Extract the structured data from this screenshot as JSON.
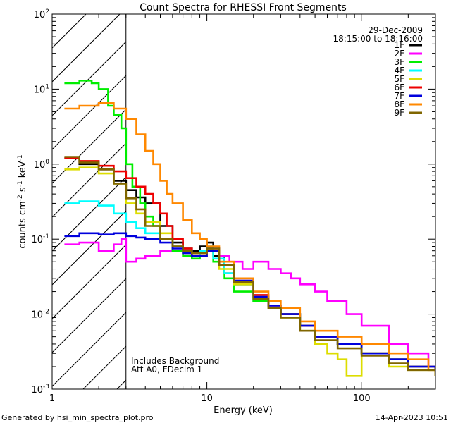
{
  "chart_data": {
    "type": "line",
    "title": "Count Spectra for RHESSI Front Segments",
    "xlabel": "Energy (keV)",
    "ylabel_main": "counts cm",
    "ylabel_sup1": "-2",
    "ylabel_mid1": " s",
    "ylabel_sup2": "-1",
    "ylabel_mid2": " keV",
    "ylabel_sup3": "-1",
    "xscale": "log",
    "yscale": "log",
    "xlim": [
      1,
      300
    ],
    "ylim": [
      0.001,
      100
    ],
    "x_ticks": [
      {
        "value": 1,
        "label": "1"
      },
      {
        "value": 10,
        "label": "10"
      },
      {
        "value": 100,
        "label": "100"
      }
    ],
    "y_ticks": [
      {
        "value": 0.001,
        "base": "10",
        "exp": "-3"
      },
      {
        "value": 0.01,
        "base": "10",
        "exp": "-2"
      },
      {
        "value": 0.1,
        "base": "10",
        "exp": "-1"
      },
      {
        "value": 1,
        "base": "10",
        "exp": "0"
      },
      {
        "value": 10,
        "base": "10",
        "exp": "1"
      },
      {
        "value": 100,
        "base": "10",
        "exp": "2"
      }
    ],
    "hatch_region": [
      1,
      3
    ],
    "date": "29-Dec-2009",
    "time_range": "18:15:00 to 18:16:00",
    "annotations": [
      "Includes Background",
      "Att A0, FDecim 1"
    ],
    "legend_position": "top-right",
    "series": [
      {
        "name": "1F",
        "color": "#000000",
        "points": [
          [
            1.2,
            1.2
          ],
          [
            1.5,
            1.0
          ],
          [
            2.0,
            0.85
          ],
          [
            2.5,
            0.6
          ],
          [
            3.0,
            0.45
          ],
          [
            3.5,
            0.36
          ],
          [
            4.0,
            0.3
          ],
          [
            5.0,
            0.15
          ],
          [
            6.0,
            0.09
          ],
          [
            7.0,
            0.075
          ],
          [
            8.0,
            0.07
          ],
          [
            9.0,
            0.08
          ],
          [
            10.0,
            0.09
          ],
          [
            11.0,
            0.06
          ],
          [
            13.0,
            0.035
          ],
          [
            15.0,
            0.025
          ],
          [
            20.0,
            0.015
          ],
          [
            25.0,
            0.012
          ],
          [
            30.0,
            0.01
          ],
          [
            40.0,
            0.007
          ],
          [
            50.0,
            0.005
          ],
          [
            70.0,
            0.004
          ],
          [
            100.0,
            0.003
          ],
          [
            150.0,
            0.0025
          ],
          [
            200.0,
            0.002
          ],
          [
            270.0,
            0.002
          ],
          [
            300.0,
            0.0018
          ]
        ]
      },
      {
        "name": "2F",
        "color": "#ff00ff",
        "points": [
          [
            1.2,
            0.085
          ],
          [
            1.5,
            0.09
          ],
          [
            2.0,
            0.07
          ],
          [
            2.5,
            0.085
          ],
          [
            2.8,
            0.1
          ],
          [
            3.0,
            0.05
          ],
          [
            3.5,
            0.055
          ],
          [
            4.0,
            0.06
          ],
          [
            5.0,
            0.07
          ],
          [
            6.0,
            0.08
          ],
          [
            7.0,
            0.07
          ],
          [
            8.0,
            0.06
          ],
          [
            10.0,
            0.07
          ],
          [
            12.0,
            0.06
          ],
          [
            14.0,
            0.05
          ],
          [
            17.0,
            0.04
          ],
          [
            20.0,
            0.05
          ],
          [
            25.0,
            0.04
          ],
          [
            30.0,
            0.035
          ],
          [
            35.0,
            0.03
          ],
          [
            40.0,
            0.025
          ],
          [
            50.0,
            0.02
          ],
          [
            60.0,
            0.015
          ],
          [
            80.0,
            0.01
          ],
          [
            100.0,
            0.007
          ],
          [
            150.0,
            0.004
          ],
          [
            200.0,
            0.003
          ],
          [
            270.0,
            0.002
          ],
          [
            300.0,
            0.002
          ]
        ]
      },
      {
        "name": "3F",
        "color": "#00ee00",
        "points": [
          [
            1.2,
            12.0
          ],
          [
            1.5,
            13.0
          ],
          [
            1.8,
            12.0
          ],
          [
            2.0,
            10.0
          ],
          [
            2.3,
            6.0
          ],
          [
            2.5,
            4.5
          ],
          [
            2.8,
            3.0
          ],
          [
            3.0,
            1.0
          ],
          [
            3.3,
            0.5
          ],
          [
            3.7,
            0.3
          ],
          [
            4.0,
            0.2
          ],
          [
            4.5,
            0.15
          ],
          [
            5.0,
            0.1
          ],
          [
            6.0,
            0.07
          ],
          [
            7.0,
            0.06
          ],
          [
            8.0,
            0.055
          ],
          [
            9.0,
            0.06
          ],
          [
            10.0,
            0.075
          ],
          [
            11.0,
            0.05
          ],
          [
            13.0,
            0.03
          ],
          [
            15.0,
            0.02
          ],
          [
            20.0,
            0.015
          ],
          [
            25.0,
            0.012
          ],
          [
            30.0,
            0.01
          ],
          [
            40.0,
            0.007
          ],
          [
            50.0,
            0.005
          ],
          [
            70.0,
            0.004
          ],
          [
            100.0,
            0.003
          ],
          [
            150.0,
            0.0025
          ],
          [
            200.0,
            0.002
          ],
          [
            300.0,
            0.0015
          ]
        ]
      },
      {
        "name": "4F",
        "color": "#00ffff",
        "points": [
          [
            1.2,
            0.3
          ],
          [
            1.5,
            0.32
          ],
          [
            2.0,
            0.28
          ],
          [
            2.5,
            0.22
          ],
          [
            3.0,
            0.17
          ],
          [
            3.5,
            0.14
          ],
          [
            4.0,
            0.12
          ],
          [
            5.0,
            0.1
          ],
          [
            6.0,
            0.08
          ],
          [
            7.0,
            0.07
          ],
          [
            8.0,
            0.06
          ],
          [
            9.0,
            0.07
          ],
          [
            10.0,
            0.08
          ],
          [
            11.0,
            0.055
          ],
          [
            13.0,
            0.035
          ],
          [
            15.0,
            0.025
          ],
          [
            20.0,
            0.016
          ],
          [
            25.0,
            0.012
          ],
          [
            30.0,
            0.01
          ],
          [
            40.0,
            0.007
          ],
          [
            50.0,
            0.005
          ],
          [
            70.0,
            0.004
          ],
          [
            100.0,
            0.003
          ],
          [
            150.0,
            0.0025
          ],
          [
            200.0,
            0.002
          ],
          [
            300.0,
            0.0017
          ]
        ]
      },
      {
        "name": "5F",
        "color": "#dddd00",
        "points": [
          [
            1.2,
            0.85
          ],
          [
            1.5,
            0.9
          ],
          [
            2.0,
            0.75
          ],
          [
            2.5,
            0.55
          ],
          [
            3.0,
            0.3
          ],
          [
            3.5,
            0.22
          ],
          [
            4.0,
            0.17
          ],
          [
            5.0,
            0.12
          ],
          [
            6.0,
            0.08
          ],
          [
            7.0,
            0.065
          ],
          [
            8.0,
            0.06
          ],
          [
            10.0,
            0.07
          ],
          [
            12.0,
            0.04
          ],
          [
            15.0,
            0.025
          ],
          [
            20.0,
            0.016
          ],
          [
            25.0,
            0.012
          ],
          [
            30.0,
            0.009
          ],
          [
            40.0,
            0.006
          ],
          [
            50.0,
            0.004
          ],
          [
            60.0,
            0.003
          ],
          [
            70.0,
            0.0025
          ],
          [
            80.0,
            0.0015
          ],
          [
            100.0,
            0.003
          ],
          [
            150.0,
            0.002
          ],
          [
            200.0,
            0.0018
          ],
          [
            300.0,
            0.0015
          ]
        ]
      },
      {
        "name": "6F",
        "color": "#ee0000",
        "points": [
          [
            1.2,
            1.2
          ],
          [
            1.5,
            1.1
          ],
          [
            2.0,
            0.95
          ],
          [
            2.5,
            0.8
          ],
          [
            3.0,
            0.65
          ],
          [
            3.5,
            0.5
          ],
          [
            4.0,
            0.4
          ],
          [
            4.5,
            0.3
          ],
          [
            5.0,
            0.22
          ],
          [
            5.5,
            0.15
          ],
          [
            6.0,
            0.1
          ],
          [
            7.0,
            0.075
          ],
          [
            8.0,
            0.065
          ],
          [
            10.0,
            0.075
          ],
          [
            12.0,
            0.045
          ],
          [
            15.0,
            0.03
          ],
          [
            20.0,
            0.018
          ],
          [
            25.0,
            0.013
          ],
          [
            30.0,
            0.01
          ],
          [
            40.0,
            0.007
          ],
          [
            50.0,
            0.005
          ],
          [
            70.0,
            0.004
          ],
          [
            100.0,
            0.003
          ],
          [
            150.0,
            0.0025
          ],
          [
            200.0,
            0.002
          ],
          [
            300.0,
            0.0018
          ]
        ]
      },
      {
        "name": "7F",
        "color": "#0000dd",
        "points": [
          [
            1.2,
            0.11
          ],
          [
            1.5,
            0.12
          ],
          [
            2.0,
            0.115
          ],
          [
            2.5,
            0.12
          ],
          [
            3.0,
            0.11
          ],
          [
            3.5,
            0.105
          ],
          [
            4.0,
            0.1
          ],
          [
            5.0,
            0.09
          ],
          [
            6.0,
            0.075
          ],
          [
            7.0,
            0.065
          ],
          [
            8.0,
            0.06
          ],
          [
            10.0,
            0.07
          ],
          [
            12.0,
            0.045
          ],
          [
            15.0,
            0.028
          ],
          [
            20.0,
            0.017
          ],
          [
            25.0,
            0.013
          ],
          [
            30.0,
            0.01
          ],
          [
            40.0,
            0.007
          ],
          [
            50.0,
            0.005
          ],
          [
            70.0,
            0.004
          ],
          [
            100.0,
            0.003
          ],
          [
            150.0,
            0.0025
          ],
          [
            200.0,
            0.002
          ],
          [
            300.0,
            0.0017
          ]
        ]
      },
      {
        "name": "8F",
        "color": "#ff8800",
        "points": [
          [
            1.2,
            5.5
          ],
          [
            1.5,
            6.0
          ],
          [
            2.0,
            6.5
          ],
          [
            2.5,
            5.5
          ],
          [
            3.0,
            4.0
          ],
          [
            3.5,
            2.5
          ],
          [
            4.0,
            1.5
          ],
          [
            4.5,
            1.0
          ],
          [
            5.0,
            0.6
          ],
          [
            5.5,
            0.4
          ],
          [
            6.0,
            0.3
          ],
          [
            7.0,
            0.18
          ],
          [
            8.0,
            0.12
          ],
          [
            9.0,
            0.1
          ],
          [
            10.0,
            0.08
          ],
          [
            12.0,
            0.05
          ],
          [
            15.0,
            0.03
          ],
          [
            20.0,
            0.02
          ],
          [
            25.0,
            0.015
          ],
          [
            30.0,
            0.012
          ],
          [
            40.0,
            0.008
          ],
          [
            50.0,
            0.006
          ],
          [
            70.0,
            0.005
          ],
          [
            100.0,
            0.004
          ],
          [
            150.0,
            0.003
          ],
          [
            200.0,
            0.0025
          ],
          [
            270.0,
            0.0018
          ],
          [
            300.0,
            0.0015
          ]
        ]
      },
      {
        "name": "9F",
        "color": "#806600",
        "points": [
          [
            1.2,
            1.25
          ],
          [
            1.5,
            1.05
          ],
          [
            2.0,
            0.85
          ],
          [
            2.5,
            0.55
          ],
          [
            3.0,
            0.35
          ],
          [
            3.5,
            0.25
          ],
          [
            4.0,
            0.15
          ],
          [
            5.0,
            0.1
          ],
          [
            6.0,
            0.08
          ],
          [
            7.0,
            0.07
          ],
          [
            8.0,
            0.065
          ],
          [
            10.0,
            0.075
          ],
          [
            12.0,
            0.045
          ],
          [
            15.0,
            0.027
          ],
          [
            20.0,
            0.016
          ],
          [
            25.0,
            0.012
          ],
          [
            30.0,
            0.009
          ],
          [
            40.0,
            0.006
          ],
          [
            50.0,
            0.0045
          ],
          [
            70.0,
            0.0035
          ],
          [
            100.0,
            0.0028
          ],
          [
            150.0,
            0.0022
          ],
          [
            200.0,
            0.0018
          ],
          [
            300.0,
            0.0015
          ]
        ]
      }
    ]
  },
  "footer": {
    "left": "Generated by hsi_min_spectra_plot.pro",
    "right": "14-Apr-2023 10:51"
  }
}
